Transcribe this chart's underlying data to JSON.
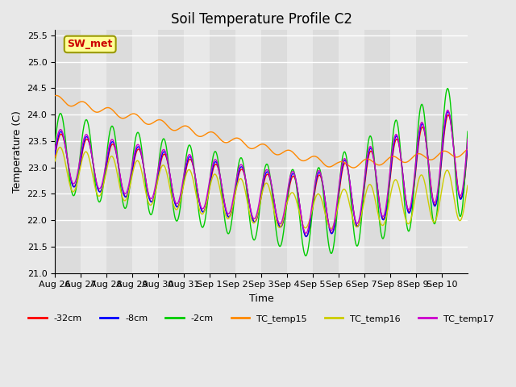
{
  "title": "Soil Temperature Profile C2",
  "xlabel": "Time",
  "ylabel": "Temperature (C)",
  "ylim": [
    21.0,
    25.6
  ],
  "background_color": "#e8e8e8",
  "annotation_text": "SW_met",
  "annotation_color": "#cc0000",
  "annotation_bg": "#ffff99",
  "annotation_border": "#999900",
  "colors": {
    "-32cm": "#ff0000",
    "-8cm": "#0000ff",
    "-2cm": "#00cc00",
    "TC_temp15": "#ff8800",
    "TC_temp16": "#cccc00",
    "TC_temp17": "#cc00cc"
  },
  "legend_labels": [
    "-32cm",
    "-8cm",
    "-2cm",
    "TC_temp15",
    "TC_temp16",
    "TC_temp17"
  ],
  "xtick_labels": [
    "Aug 26",
    "Aug 27",
    "Aug 28",
    "Aug 29",
    "Aug 30",
    "Aug 31",
    "Sep 1",
    "Sep 2",
    "Sep 3",
    "Sep 4",
    "Sep 5",
    "Sep 6",
    "Sep 7",
    "Sep 8",
    "Sep 9",
    "Sep 10"
  ],
  "grid_color": "#ffffff",
  "line_width": 1.0
}
